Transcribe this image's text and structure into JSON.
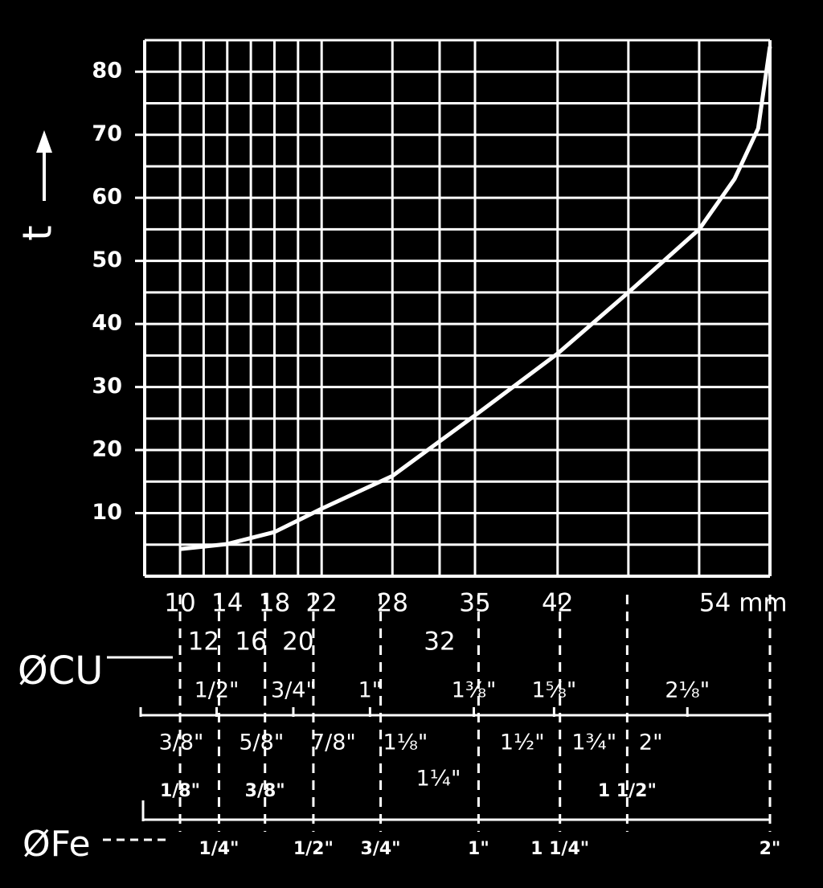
{
  "chart_data": {
    "type": "line",
    "y_label": "t",
    "cu_label": "ØCU",
    "fe_label": "ØFe",
    "xlim": [
      7,
      60
    ],
    "ylim": [
      0,
      85
    ],
    "yticks": [
      10,
      20,
      30,
      40,
      50,
      60,
      70,
      80
    ],
    "y_minor_ticks": [
      5,
      15,
      25,
      35,
      45,
      55,
      65,
      75
    ],
    "xticks": [
      10,
      14,
      18,
      22,
      28,
      35,
      42,
      {
        "value": 54,
        "label": "54 mm"
      }
    ],
    "xticks_second_row": [
      12,
      16,
      20,
      32
    ],
    "x_minor_ticks": [
      48
    ],
    "grid": true,
    "color": "#ffffff",
    "x": [
      10,
      14,
      18,
      22,
      28,
      35,
      42,
      48,
      54,
      57,
      59,
      60
    ],
    "values": [
      4.3,
      5.1,
      7.0,
      10.7,
      15.9,
      25.5,
      35.3,
      45,
      55,
      63,
      71,
      84
    ],
    "cu_inch_rows": [
      [
        {
          "label": "1/2\"",
          "x": 13.1
        },
        {
          "label": "3/4\"",
          "x": 19.6
        },
        {
          "label": "1\"",
          "x": 26.1
        },
        {
          "label": "1⅜\"",
          "x": 34.9
        },
        {
          "label": "1⅝\"",
          "x": 41.7
        },
        {
          "label": "2⅛\"",
          "x": 53.0
        }
      ],
      [
        {
          "label": "3/8\"",
          "x": 10.1
        },
        {
          "label": "5/8\"",
          "x": 16.9
        },
        {
          "label": "7/8\"",
          "x": 23.0
        },
        {
          "label": "1⅛\"",
          "x": 29.1
        },
        {
          "label": "1½\"",
          "x": 39.0
        },
        {
          "label": "1¾\"",
          "x": 45.1
        },
        {
          "label": "2\"",
          "x": 49.9
        }
      ],
      [
        {
          "label": "1¼\"",
          "x": 31.9
        }
      ]
    ],
    "fe_rows": [
      [
        {
          "label": "1/8\"",
          "x": 10.0
        },
        {
          "label": "3/8\"",
          "x": 17.2
        },
        {
          "label": "1 1/2\"",
          "x": 47.9
        }
      ],
      [
        {
          "label": "1/4\"",
          "x": 13.3
        },
        {
          "label": "1/2\"",
          "x": 21.3
        },
        {
          "label": "3/4\"",
          "x": 27.0
        },
        {
          "label": "1\"",
          "x": 35.3
        },
        {
          "label": "1 1/4\"",
          "x": 42.2
        },
        {
          "label": "2\"",
          "x": 60.0
        }
      ]
    ]
  }
}
